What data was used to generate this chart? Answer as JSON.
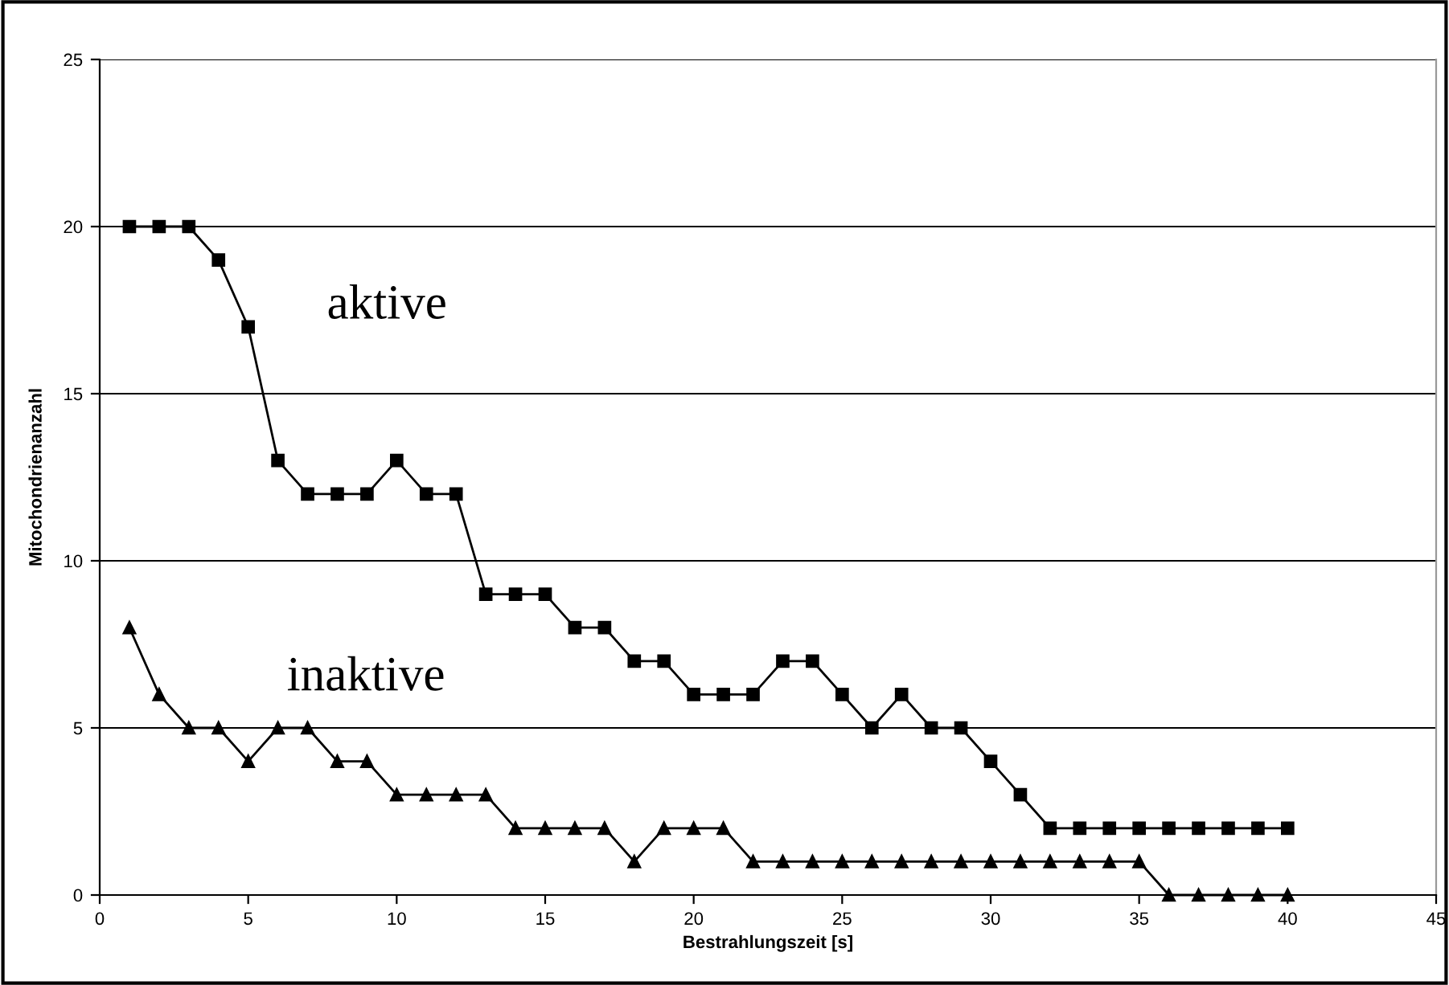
{
  "chart_data": {
    "type": "line",
    "xlabel": "Bestrahlungszeit [s]",
    "ylabel": "Mitochondrienanzahl",
    "x": [
      1,
      2,
      3,
      4,
      5,
      6,
      7,
      8,
      9,
      10,
      11,
      12,
      13,
      14,
      15,
      16,
      17,
      18,
      19,
      20,
      21,
      22,
      23,
      24,
      25,
      26,
      27,
      28,
      29,
      30,
      31,
      32,
      33,
      34,
      35,
      36,
      37,
      38,
      39,
      40
    ],
    "series": [
      {
        "name": "aktive",
        "color": "#000000",
        "marker": "square",
        "values": [
          20,
          20,
          20,
          19,
          17,
          13,
          12,
          12,
          12,
          13,
          12,
          12,
          9,
          9,
          9,
          8,
          8,
          7,
          7,
          6,
          6,
          6,
          7,
          7,
          6,
          5,
          6,
          5,
          5,
          4,
          3,
          2,
          2,
          2,
          2,
          2,
          2,
          2,
          2,
          2
        ]
      },
      {
        "name": "inaktive",
        "color": "#000000",
        "marker": "triangle",
        "values": [
          8,
          6,
          5,
          5,
          4,
          5,
          5,
          4,
          4,
          3,
          3,
          3,
          3,
          2,
          2,
          2,
          2,
          1,
          2,
          2,
          2,
          1,
          1,
          1,
          1,
          1,
          1,
          1,
          1,
          1,
          1,
          1,
          1,
          1,
          1,
          0,
          0,
          0,
          0,
          0
        ]
      }
    ],
    "xlim": [
      0,
      45
    ],
    "xticks": [
      0,
      5,
      10,
      15,
      20,
      25,
      30,
      35,
      40,
      45
    ],
    "ylim": [
      0,
      25
    ],
    "yticks": [
      0,
      5,
      10,
      15,
      20,
      25
    ],
    "grid": "y",
    "legend": false,
    "line_style": "solid"
  }
}
